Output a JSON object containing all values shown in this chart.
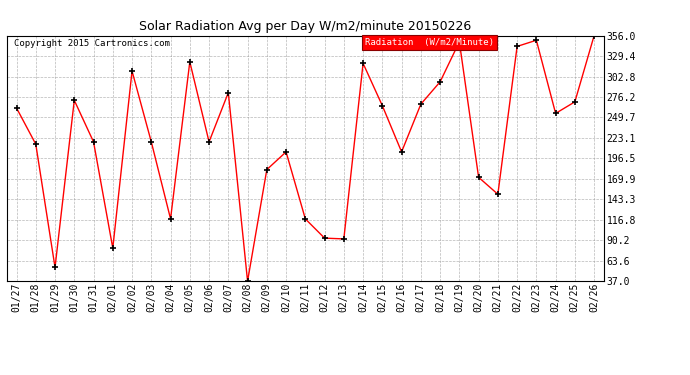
{
  "title": "Solar Radiation Avg per Day W/m2/minute 20150226",
  "copyright": "Copyright 2015 Cartronics.com",
  "legend_label": "Radiation  (W/m2/Minute)",
  "dates": [
    "01/27",
    "01/28",
    "01/29",
    "01/30",
    "01/31",
    "02/01",
    "02/02",
    "02/03",
    "02/04",
    "02/05",
    "02/06",
    "02/07",
    "02/08",
    "02/09",
    "02/10",
    "02/11",
    "02/12",
    "02/13",
    "02/14",
    "02/15",
    "02/16",
    "02/17",
    "02/18",
    "02/19",
    "02/20",
    "02/21",
    "02/22",
    "02/23",
    "02/24",
    "02/25",
    "02/26"
  ],
  "values": [
    262,
    215,
    55,
    272,
    218,
    80,
    310,
    218,
    118,
    322,
    218,
    282,
    37,
    182,
    205,
    118,
    93,
    92,
    320,
    265,
    205,
    267,
    296,
    348,
    172,
    150,
    342,
    350,
    255,
    270,
    356
  ],
  "y_ticks": [
    37.0,
    63.6,
    90.2,
    116.8,
    143.3,
    169.9,
    196.5,
    223.1,
    249.7,
    276.2,
    302.8,
    329.4,
    356.0
  ],
  "y_min": 37.0,
  "y_max": 356.0,
  "line_color": "red",
  "marker_color": "black",
  "marker_size": 5,
  "background_color": "#ffffff",
  "grid_color": "#999999",
  "title_fontsize": 9,
  "axis_fontsize": 7,
  "legend_bg": "red",
  "legend_fg": "white"
}
